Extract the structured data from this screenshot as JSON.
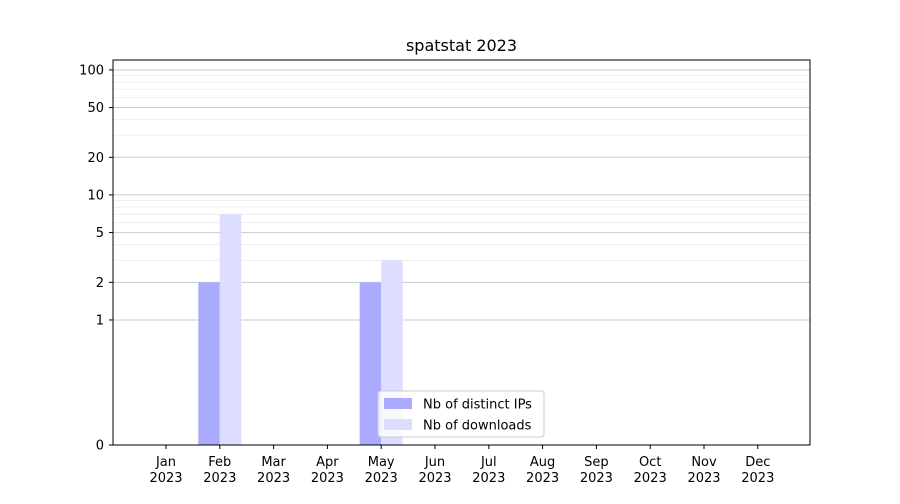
{
  "chart_data": {
    "type": "bar",
    "title": "spatstat 2023",
    "xlabel": "",
    "ylabel": "",
    "categories": [
      [
        "Jan",
        "2023"
      ],
      [
        "Feb",
        "2023"
      ],
      [
        "Mar",
        "2023"
      ],
      [
        "Apr",
        "2023"
      ],
      [
        "May",
        "2023"
      ],
      [
        "Jun",
        "2023"
      ],
      [
        "Jul",
        "2023"
      ],
      [
        "Aug",
        "2023"
      ],
      [
        "Sep",
        "2023"
      ],
      [
        "Oct",
        "2023"
      ],
      [
        "Nov",
        "2023"
      ],
      [
        "Dec",
        "2023"
      ]
    ],
    "series": [
      {
        "name": "Nb of distinct IPs",
        "color": "#aaaaff",
        "values": [
          0,
          2,
          0,
          0,
          2,
          0,
          0,
          0,
          0,
          0,
          0,
          0
        ]
      },
      {
        "name": "Nb of downloads",
        "color": "#ddddff",
        "values": [
          0,
          7,
          0,
          0,
          3,
          0,
          0,
          0,
          0,
          0,
          0,
          0
        ]
      }
    ],
    "y_scale": "symlog",
    "ylim": [
      0,
      120
    ],
    "y_ticks": [
      0,
      1,
      2,
      5,
      10,
      20,
      50,
      100
    ],
    "y_minor_gridlines": [
      3,
      4,
      6,
      7,
      8,
      9,
      30,
      40,
      60,
      70,
      80,
      90
    ],
    "grid": true,
    "legend_position": "lower-center"
  }
}
